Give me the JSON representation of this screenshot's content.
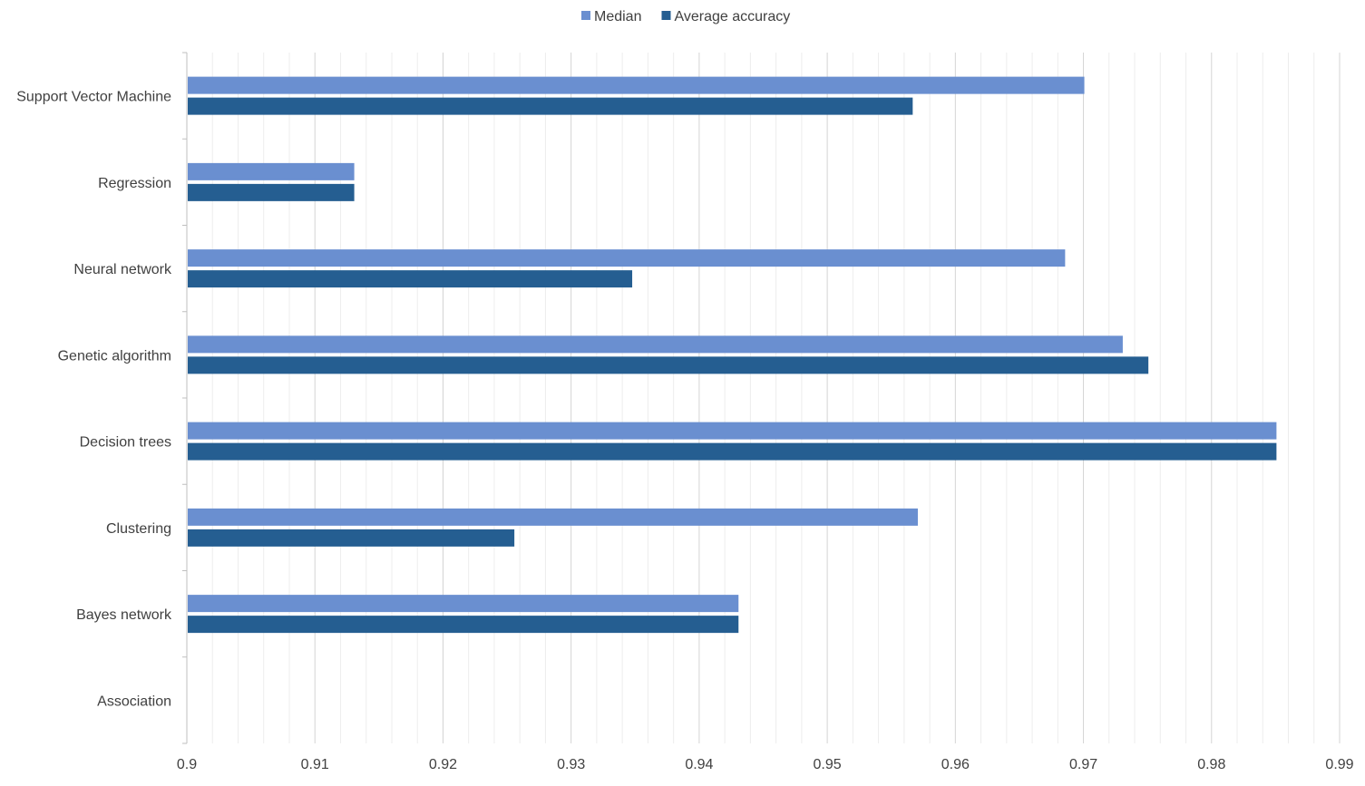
{
  "chart_data": {
    "type": "bar",
    "orientation": "horizontal",
    "categories": [
      "Support Vector Machine",
      "Regression",
      "Neural network",
      "Genetic algorithm",
      "Decision trees",
      "Clustering",
      "Bayes network",
      "Association"
    ],
    "series": [
      {
        "name": "Median",
        "color": "#6a8fd0",
        "values": [
          0.97,
          0.913,
          0.9685,
          0.973,
          0.985,
          0.957,
          0.943,
          null
        ]
      },
      {
        "name": "Average accuracy",
        "color": "#255e91",
        "values": [
          0.9566,
          0.913,
          0.9347,
          0.975,
          0.985,
          0.9255,
          0.943,
          null
        ]
      }
    ],
    "xlim": [
      0.9,
      0.99
    ],
    "x_ticks": [
      "0.9",
      "0.91",
      "0.92",
      "0.93",
      "0.94",
      "0.95",
      "0.96",
      "0.97",
      "0.98",
      "0.99"
    ],
    "grid": "vertical major and minor",
    "legend_position": "top-center",
    "title": "",
    "xlabel": "",
    "ylabel": ""
  }
}
